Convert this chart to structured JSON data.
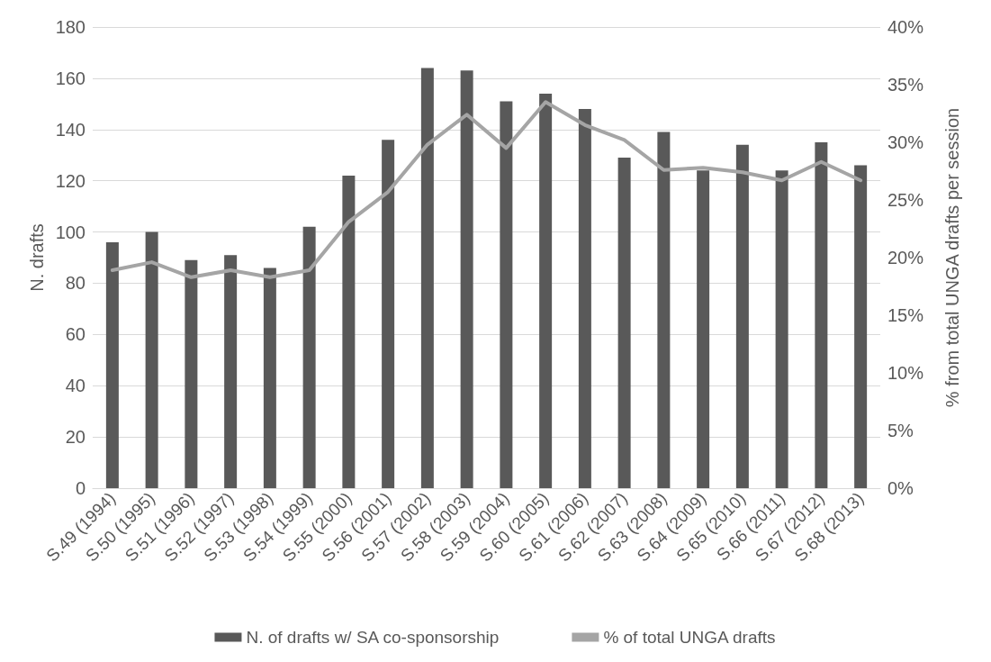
{
  "chart_data": {
    "type": "bar",
    "ylabel": "N. drafts",
    "y2label": "% from total UNGA drafts per session",
    "categories": [
      "S.49 (1994)",
      "S.50 (1995)",
      "S.51 (1996)",
      "S.52 (1997)",
      "S.53 (1998)",
      "S.54 (1999)",
      "S.55 (2000)",
      "S.56 (2001)",
      "S.57 (2002)",
      "S.58 (2003)",
      "S.59 (2004)",
      "S.60 (2005)",
      "S.61 (2006)",
      "S.62 (2007)",
      "S.63 (2008)",
      "S.64 (2009)",
      "S.65 (2010)",
      "S.66 (2011)",
      "S.67 (2012)",
      "S.68 (2013)"
    ],
    "series": [
      {
        "name": "N. of drafts w/ SA co-sponsorship",
        "color": "#595959",
        "values": [
          96,
          100,
          89,
          91,
          86,
          102,
          122,
          136,
          164,
          163,
          151,
          154,
          148,
          129,
          139,
          124,
          134,
          124,
          135,
          126
        ]
      },
      {
        "name": "% of total UNGA drafts",
        "type": "line",
        "axis": "y2",
        "color": "#a5a5a5",
        "values": [
          18.9,
          19.6,
          18.3,
          18.9,
          18.3,
          18.9,
          23.1,
          25.7,
          29.8,
          32.4,
          29.5,
          33.5,
          31.5,
          30.2,
          27.6,
          27.8,
          27.4,
          26.7,
          28.3,
          26.7
        ]
      }
    ],
    "ylim": [
      0,
      180
    ],
    "yticks": [
      0,
      20,
      40,
      60,
      80,
      100,
      120,
      140,
      160,
      180
    ],
    "y2lim": [
      0,
      40
    ],
    "y2ticks": [
      {
        "value": 0,
        "label": "0%"
      },
      {
        "value": 5,
        "label": "5%"
      },
      {
        "value": 10,
        "label": "10%"
      },
      {
        "value": 15,
        "label": "15%"
      },
      {
        "value": 20,
        "label": "20%"
      },
      {
        "value": 25,
        "label": "25%"
      },
      {
        "value": 30,
        "label": "30%"
      },
      {
        "value": 35,
        "label": "35%"
      },
      {
        "value": 40,
        "label": "40%"
      }
    ],
    "grid": "y",
    "legend": "bottom",
    "marker": "none",
    "line_style": "solid"
  }
}
